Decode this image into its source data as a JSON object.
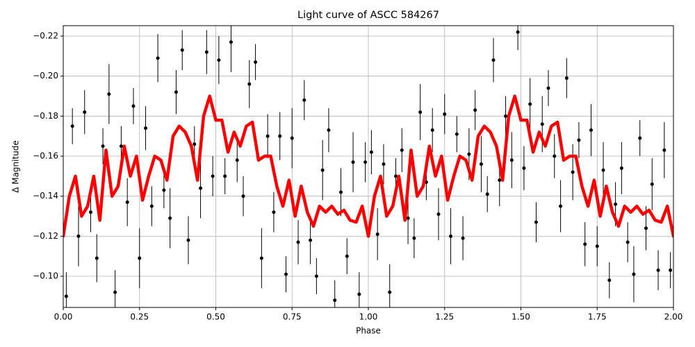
{
  "chart_data": {
    "type": "scatter",
    "title": "Light curve of ASCC 584267",
    "x_label": "Phase",
    "y_label": "Δ Magnitude",
    "xlim": [
      0,
      2
    ],
    "ylim": [
      -0.0844,
      -0.2252
    ],
    "xticks": [
      {
        "value": 0,
        "label": "0.00"
      },
      {
        "value": 0.25,
        "label": "0.25"
      },
      {
        "value": 0.5,
        "label": "0.50"
      },
      {
        "value": 0.75,
        "label": "0.75"
      },
      {
        "value": 1,
        "label": "1.00"
      },
      {
        "value": 1.25,
        "label": "1.25"
      },
      {
        "value": 1.5,
        "label": "1.50"
      },
      {
        "value": 1.75,
        "label": "1.75"
      },
      {
        "value": 2,
        "label": "2.00"
      }
    ],
    "yticks": [
      {
        "value": -0.22,
        "label": "−0.22"
      },
      {
        "value": -0.2,
        "label": "−0.20"
      },
      {
        "value": -0.18,
        "label": "−0.18"
      },
      {
        "value": -0.16,
        "label": "−0.16"
      },
      {
        "value": -0.14,
        "label": "−0.14"
      },
      {
        "value": -0.12,
        "label": "−0.12"
      },
      {
        "value": -0.1,
        "label": "−0.10"
      }
    ],
    "grid": true,
    "series": [
      {
        "type": "errorbar",
        "color": "#000000",
        "x": [
          0.01,
          0.03,
          0.05,
          0.07,
          0.09,
          0.11,
          0.13,
          0.15,
          0.17,
          0.19,
          0.21,
          0.23,
          0.25,
          0.27,
          0.29,
          0.31,
          0.33,
          0.35,
          0.37,
          0.39,
          0.41,
          0.43,
          0.45,
          0.47,
          0.49,
          0.51,
          0.53,
          0.55,
          0.57,
          0.59,
          0.61,
          0.63,
          0.65,
          0.67,
          0.69,
          0.71,
          0.73,
          0.75,
          0.77,
          0.79,
          0.81,
          0.83,
          0.85,
          0.87,
          0.89,
          0.91,
          0.93,
          0.95,
          0.97,
          0.99,
          1.01,
          1.03,
          1.05,
          1.07,
          1.09,
          1.11,
          1.13,
          1.15,
          1.17,
          1.19,
          1.21,
          1.23,
          1.25,
          1.27,
          1.29,
          1.31,
          1.33,
          1.35,
          1.37,
          1.39,
          1.41,
          1.43,
          1.45,
          1.47,
          1.49,
          1.51,
          1.53,
          1.55,
          1.57,
          1.59,
          1.61,
          1.63,
          1.65,
          1.67,
          1.69,
          1.71,
          1.73,
          1.75,
          1.77,
          1.79,
          1.81,
          1.83,
          1.85,
          1.87,
          1.89,
          1.91,
          1.93,
          1.95,
          1.97,
          1.99
        ],
        "values": [
          -0.09,
          -0.175,
          -0.12,
          -0.182,
          -0.132,
          -0.109,
          -0.165,
          -0.191,
          -0.092,
          -0.165,
          -0.137,
          -0.185,
          -0.109,
          -0.174,
          -0.135,
          -0.209,
          -0.143,
          -0.129,
          -0.192,
          -0.213,
          -0.118,
          -0.166,
          -0.144,
          -0.212,
          -0.15,
          -0.208,
          -0.15,
          -0.217,
          -0.158,
          -0.14,
          -0.196,
          -0.207,
          -0.109,
          -0.17,
          -0.132,
          -0.17,
          -0.101,
          -0.169,
          -0.117,
          -0.188,
          -0.118,
          -0.1,
          -0.153,
          -0.173,
          -0.088,
          -0.142,
          -0.11,
          -0.157,
          -0.091,
          -0.157,
          -0.162,
          -0.121,
          -0.156,
          -0.092,
          -0.15,
          -0.163,
          -0.129,
          -0.119,
          -0.182,
          -0.147,
          -0.173,
          -0.131,
          -0.181,
          -0.12,
          -0.171,
          -0.119,
          -0.161,
          -0.183,
          -0.156,
          -0.141,
          -0.208,
          -0.148,
          -0.18,
          -0.158,
          -0.222,
          -0.154,
          -0.186,
          -0.127,
          -0.176,
          -0.194,
          -0.16,
          -0.135,
          -0.199,
          -0.152,
          -0.168,
          -0.116,
          -0.173,
          -0.115,
          -0.153,
          -0.098,
          -0.136,
          -0.154,
          -0.117,
          -0.101,
          -0.169,
          -0.124,
          -0.146,
          -0.103,
          -0.163,
          -0.103
        ],
        "errors": [
          0.012,
          0.009,
          0.015,
          0.011,
          0.01,
          0.012,
          0.009,
          0.015,
          0.011,
          0.01,
          0.012,
          0.009,
          0.015,
          0.011,
          0.01,
          0.012,
          0.009,
          0.015,
          0.011,
          0.01,
          0.012,
          0.009,
          0.015,
          0.011,
          0.01,
          0.012,
          0.009,
          0.015,
          0.011,
          0.01,
          0.012,
          0.009,
          0.015,
          0.011,
          0.01,
          0.012,
          0.009,
          0.015,
          0.011,
          0.01,
          0.012,
          0.009,
          0.015,
          0.011,
          0.01,
          0.012,
          0.009,
          0.015,
          0.011,
          0.01,
          0.011,
          0.013,
          0.01,
          0.014,
          0.009,
          0.011,
          0.013,
          0.01,
          0.014,
          0.009,
          0.011,
          0.013,
          0.01,
          0.014,
          0.009,
          0.011,
          0.013,
          0.01,
          0.014,
          0.009,
          0.011,
          0.013,
          0.01,
          0.014,
          0.009,
          0.011,
          0.013,
          0.01,
          0.014,
          0.009,
          0.011,
          0.013,
          0.01,
          0.014,
          0.009,
          0.011,
          0.013,
          0.01,
          0.014,
          0.009,
          0.011,
          0.013,
          0.01,
          0.014,
          0.009,
          0.011,
          0.013,
          0.01,
          0.014,
          0.009
        ]
      },
      {
        "type": "line",
        "color": "#ff0000",
        "x": [
          0,
          0.02,
          0.04,
          0.06,
          0.08,
          0.1,
          0.12,
          0.14,
          0.16,
          0.18,
          0.2,
          0.22,
          0.24,
          0.26,
          0.28,
          0.3,
          0.32,
          0.34,
          0.36,
          0.38,
          0.4,
          0.42,
          0.44,
          0.46,
          0.48,
          0.5,
          0.52,
          0.54,
          0.56,
          0.58,
          0.6,
          0.62,
          0.64,
          0.66,
          0.68,
          0.7,
          0.72,
          0.74,
          0.76,
          0.78,
          0.8,
          0.82,
          0.84,
          0.86,
          0.88,
          0.9,
          0.92,
          0.94,
          0.96,
          0.98,
          1,
          1.02,
          1.04,
          1.06,
          1.08,
          1.1,
          1.12,
          1.14,
          1.16,
          1.18,
          1.2,
          1.22,
          1.24,
          1.26,
          1.28,
          1.3,
          1.32,
          1.34,
          1.36,
          1.38,
          1.4,
          1.42,
          1.44,
          1.46,
          1.48,
          1.5,
          1.52,
          1.54,
          1.56,
          1.58,
          1.6,
          1.62,
          1.64,
          1.66,
          1.68,
          1.7,
          1.72,
          1.74,
          1.76,
          1.78,
          1.8,
          1.82,
          1.84,
          1.86,
          1.88,
          1.9,
          1.92,
          1.94,
          1.96,
          1.98,
          2
        ],
        "values": [
          -0.12,
          -0.14,
          -0.15,
          -0.13,
          -0.135,
          -0.15,
          -0.128,
          -0.163,
          -0.14,
          -0.145,
          -0.165,
          -0.15,
          -0.16,
          -0.138,
          -0.15,
          -0.16,
          -0.158,
          -0.148,
          -0.17,
          -0.175,
          -0.172,
          -0.165,
          -0.148,
          -0.18,
          -0.19,
          -0.178,
          -0.178,
          -0.162,
          -0.172,
          -0.165,
          -0.175,
          -0.177,
          -0.158,
          -0.16,
          -0.16,
          -0.145,
          -0.135,
          -0.148,
          -0.13,
          -0.145,
          -0.132,
          -0.125,
          -0.135,
          -0.132,
          -0.135,
          -0.131,
          -0.133,
          -0.128,
          -0.127,
          -0.135,
          -0.12,
          -0.14,
          -0.15,
          -0.13,
          -0.135,
          -0.15,
          -0.128,
          -0.163,
          -0.14,
          -0.145,
          -0.165,
          -0.15,
          -0.16,
          -0.138,
          -0.15,
          -0.16,
          -0.158,
          -0.148,
          -0.17,
          -0.175,
          -0.172,
          -0.165,
          -0.148,
          -0.18,
          -0.19,
          -0.178,
          -0.178,
          -0.162,
          -0.172,
          -0.165,
          -0.175,
          -0.177,
          -0.158,
          -0.16,
          -0.16,
          -0.145,
          -0.135,
          -0.148,
          -0.13,
          -0.145,
          -0.132,
          -0.125,
          -0.135,
          -0.132,
          -0.135,
          -0.131,
          -0.133,
          -0.128,
          -0.127,
          -0.135,
          -0.12
        ]
      }
    ]
  }
}
